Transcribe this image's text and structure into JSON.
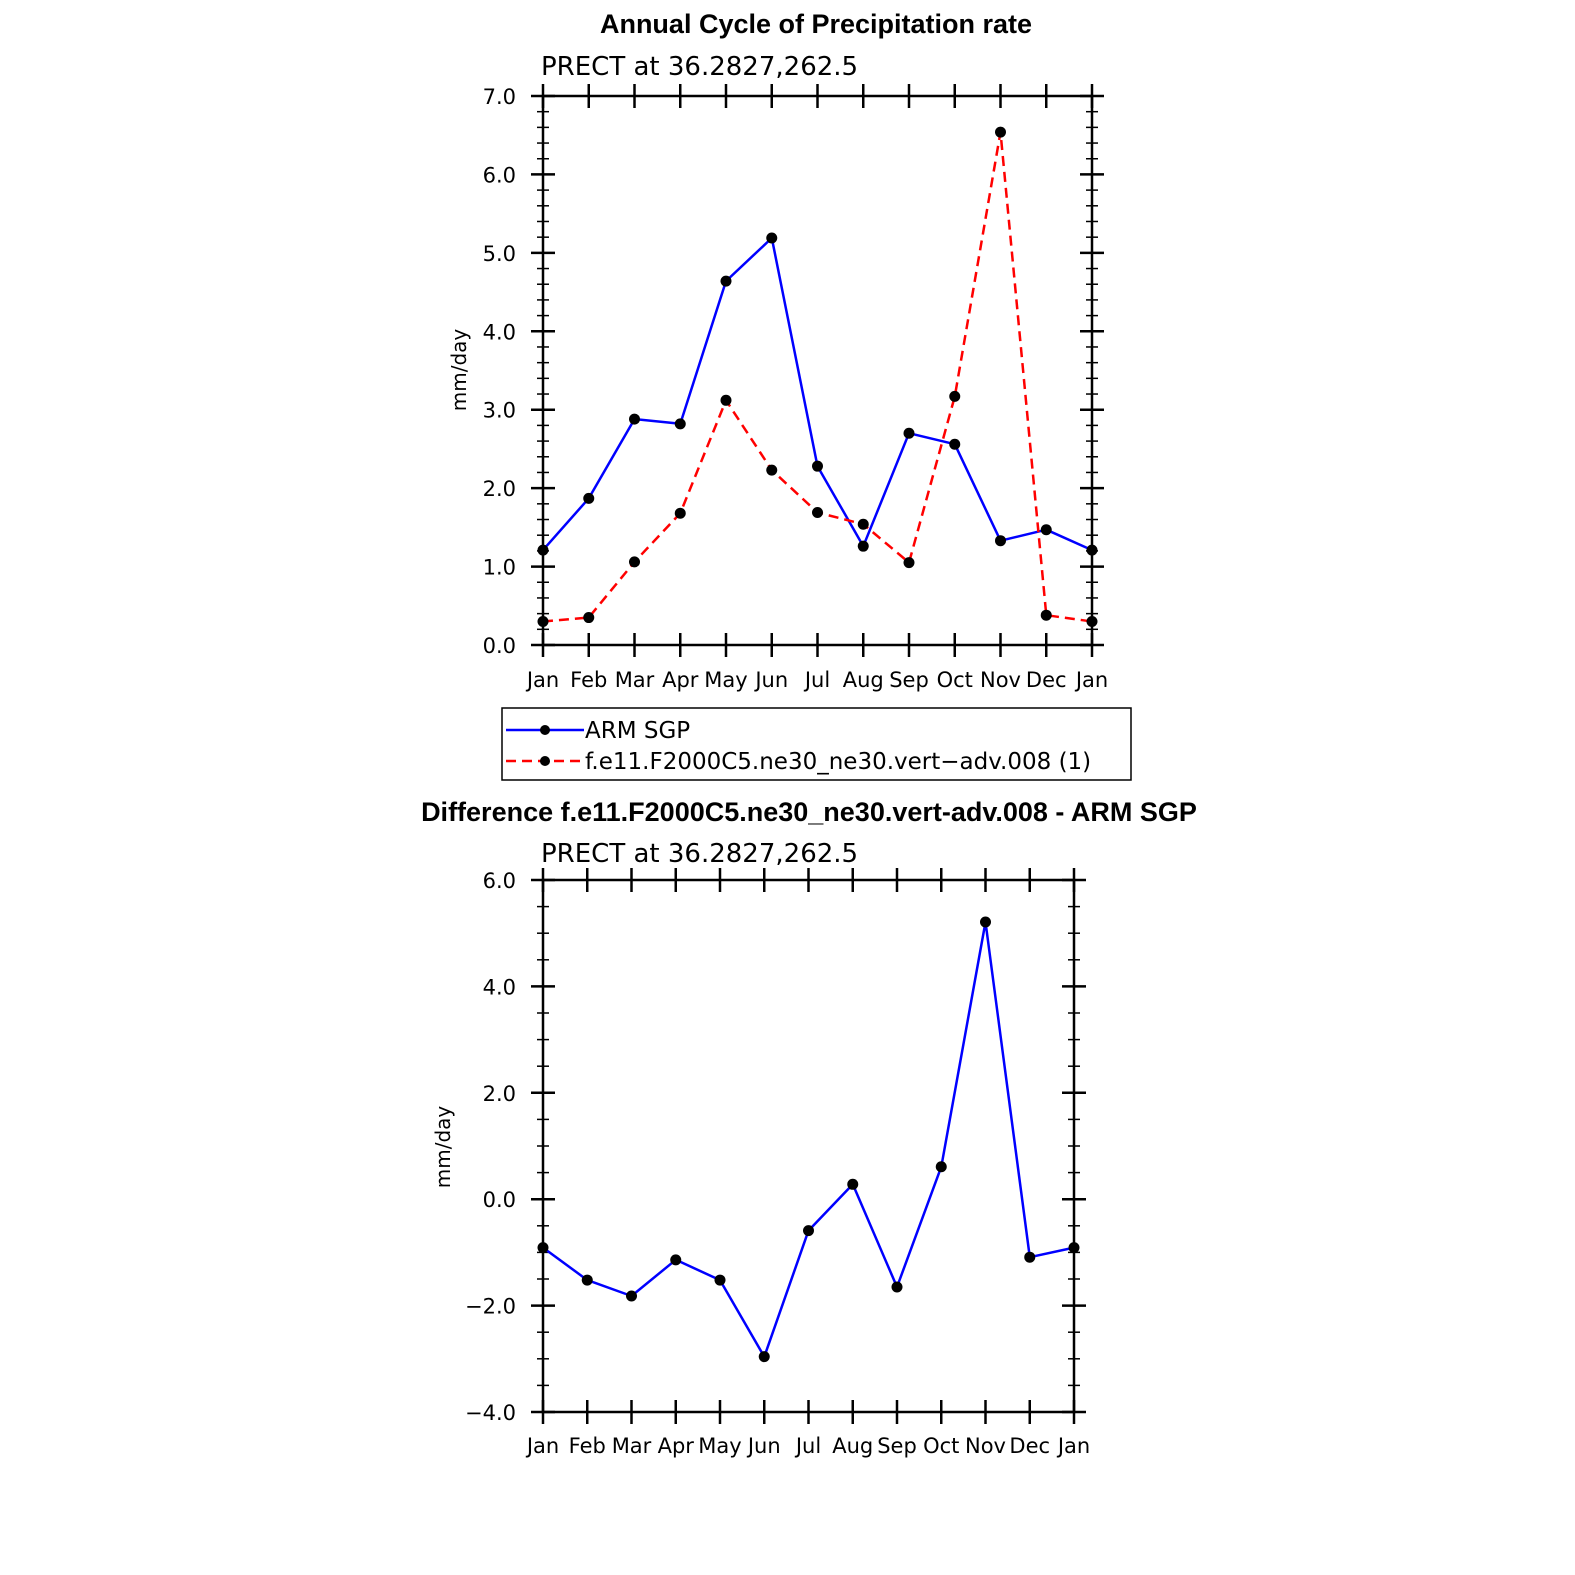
{
  "chart_data": [
    {
      "type": "line",
      "title": "Annual Cycle of Precipitation rate",
      "subtitle": "PRECT at 36.2827,262.5",
      "ylabel": "mm/day",
      "xlabel": "",
      "categories": [
        "Jan",
        "Feb",
        "Mar",
        "Apr",
        "May",
        "Jun",
        "Jul",
        "Aug",
        "Sep",
        "Oct",
        "Nov",
        "Dec",
        "Jan"
      ],
      "ylim": [
        0,
        7
      ],
      "yticks": [
        "0.0",
        "1.0",
        "2.0",
        "3.0",
        "4.0",
        "5.0",
        "6.0",
        "7.0"
      ],
      "legend_position": "below",
      "series": [
        {
          "name": "ARM SGP",
          "color": "#0000ff",
          "dash": "solid",
          "values": [
            1.21,
            1.87,
            2.88,
            2.82,
            4.64,
            5.19,
            2.28,
            1.26,
            2.7,
            2.56,
            1.33,
            1.47,
            1.21
          ]
        },
        {
          "name": "f.e11.F2000C5.ne30_ne30.vert−adv.008 (1)",
          "color": "#ff0000",
          "dash": "dashed",
          "values": [
            0.3,
            0.35,
            1.06,
            1.68,
            3.12,
            2.23,
            1.69,
            1.54,
            1.05,
            3.17,
            6.54,
            0.38,
            0.3
          ]
        }
      ]
    },
    {
      "type": "line",
      "title": "Difference f.e11.F2000C5.ne30_ne30.vert-adv.008 - ARM SGP",
      "subtitle": "PRECT at 36.2827,262.5",
      "ylabel": "mm/day",
      "xlabel": "",
      "categories": [
        "Jan",
        "Feb",
        "Mar",
        "Apr",
        "May",
        "Jun",
        "Jul",
        "Aug",
        "Sep",
        "Oct",
        "Nov",
        "Dec",
        "Jan"
      ],
      "ylim": [
        -4,
        6
      ],
      "yticks": [
        "−4.0",
        "−2.0",
        "0.0",
        "2.0",
        "4.0",
        "6.0"
      ],
      "series": [
        {
          "name": "Difference",
          "color": "#0000ff",
          "dash": "solid",
          "values": [
            -0.91,
            -1.52,
            -1.82,
            -1.14,
            -1.52,
            -2.96,
            -0.59,
            0.28,
            -1.65,
            0.61,
            5.21,
            -1.09,
            -0.91
          ]
        }
      ]
    }
  ]
}
